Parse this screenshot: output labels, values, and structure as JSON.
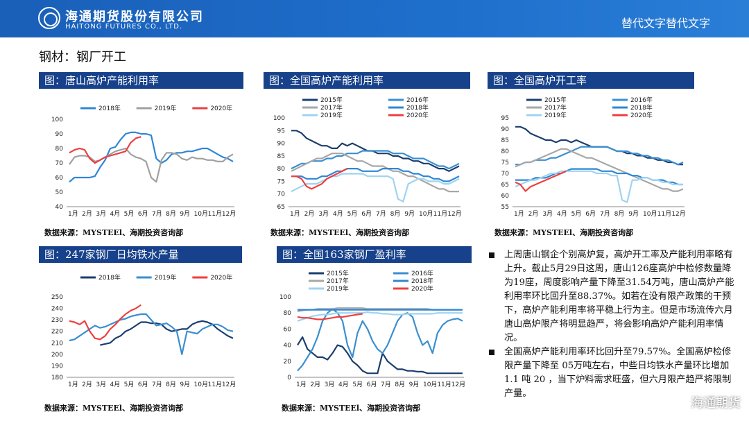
{
  "header": {
    "company_cn": "海通期货股份有限公司",
    "company_en": "HAITONG FUTURES CO., LTD.",
    "alt_text": "替代文字替代文字"
  },
  "page_title": "钢材：钢厂开工",
  "source_text": "数据来源：MYSTEEl、海期投资咨询部",
  "notes": [
    "上周唐山钢企个别高炉复，高炉开工率及产能利用率略有上升。截止5月29日这周，唐山126座高炉中检修数量降为19座，周度影响产量下降至31.54万吨，唐山高炉产能利用率环比回升至88.37%。如若在没有限产政策的干预下，高炉产能利用率将平稳上行为主。但是市场流传六月唐山高炉限产将明显趋严，将会影响高炉产能利用率情况。",
    "全国高炉产能利用率环比回升至79.57%。全国高炉检修限产量下降至 05万吨左右，中些日均铁水产量环比增加1.1 吨 20 ，当下炉料需求旺盛，但六月限产趋严将限制产量。"
  ],
  "watermark": "海通期货",
  "colors": {
    "2015": "#1b3e6e",
    "2016": "#3a8fd0",
    "2017": "#a7a7a7",
    "2018": "#2f86d6",
    "2019": "#9fd3f0",
    "2020": "#ee3f3f",
    "2018_tangshan": "#2f86d6",
    "2019_tangshan": "#a0a0a0",
    "2018_iron": "#1b3e6e",
    "2019_iron": "#3a8fd0"
  },
  "chart_data": [
    {
      "type": "line",
      "title": "图：唐山高炉产能利用率",
      "x_ticks": [
        "1月",
        "2月",
        "3月",
        "4月",
        "5月",
        "6月",
        "7月",
        "8月",
        "9月",
        "10月",
        "11月",
        "12月"
      ],
      "ylim": [
        40,
        100
      ],
      "y_ticks": [
        40,
        50,
        60,
        70,
        80,
        90,
        100
      ],
      "legend": [
        "2018年",
        "2019年",
        "2020年"
      ],
      "series": [
        {
          "name": "2018年",
          "color_key": "2018_tangshan",
          "values": [
            57,
            60,
            60,
            60,
            60,
            61,
            67,
            72,
            80,
            81,
            86,
            90,
            91,
            91,
            90,
            90,
            89,
            73,
            70,
            72,
            76,
            77,
            77,
            78,
            78,
            79,
            80,
            80,
            78,
            76,
            74,
            73,
            71
          ]
        },
        {
          "name": "2019年",
          "color_key": "2019_tangshan",
          "values": [
            69,
            74,
            75,
            75,
            74,
            71,
            72,
            74,
            76,
            78,
            79,
            80,
            76,
            74,
            73,
            71,
            60,
            57,
            72,
            77,
            77,
            76,
            73,
            72,
            74,
            73,
            73,
            72,
            72,
            71,
            71,
            74,
            76
          ]
        },
        {
          "name": "2020年",
          "color_key": "2020",
          "values": [
            77,
            79,
            80,
            79,
            73,
            70,
            72,
            74,
            75,
            76,
            77,
            78,
            84,
            87,
            88
          ]
        }
      ]
    },
    {
      "type": "line",
      "title": "图：全国高炉产能利用率",
      "x_ticks": [
        "1月",
        "2月",
        "3月",
        "4月",
        "5月",
        "6月",
        "7月",
        "8月",
        "9月",
        "10月",
        "11月",
        "12月"
      ],
      "ylim": [
        65,
        100
      ],
      "y_ticks": [
        65,
        70,
        75,
        80,
        85,
        90,
        95,
        100
      ],
      "legend": [
        "2015年",
        "2016年",
        "2017年",
        "2018年",
        "2019年",
        "2020年"
      ],
      "series": [
        {
          "name": "2015年",
          "color_key": "2015",
          "values": [
            95,
            95,
            94,
            92,
            91,
            90,
            89,
            89,
            88,
            88,
            90,
            89,
            90,
            89,
            88,
            87,
            87,
            86,
            86,
            86,
            85,
            85,
            84,
            84,
            83,
            83,
            82,
            82,
            81,
            80,
            80,
            79,
            80,
            81
          ]
        },
        {
          "name": "2016年",
          "color_key": "2016",
          "values": [
            80,
            81,
            82,
            82,
            83,
            83,
            83,
            84,
            84,
            85,
            85,
            86,
            86,
            86,
            87,
            87,
            87,
            87,
            87,
            87,
            86,
            86,
            86,
            85,
            84,
            84,
            84,
            83,
            82,
            81,
            81,
            80,
            81,
            82
          ]
        },
        {
          "name": "2017年",
          "color_key": "2017",
          "values": [
            79,
            80,
            81,
            82,
            83,
            84,
            84,
            85,
            86,
            86,
            86,
            85,
            84,
            83,
            83,
            82,
            81,
            81,
            81,
            80,
            79,
            79,
            78,
            77,
            77,
            76,
            75,
            74,
            73,
            72,
            72,
            71,
            71,
            71
          ]
        },
        {
          "name": "2018年",
          "color_key": "2018",
          "values": [
            77,
            77,
            77,
            76,
            76,
            76,
            77,
            77,
            78,
            79,
            79,
            80,
            80,
            80,
            79,
            79,
            79,
            79,
            80,
            80,
            80,
            80,
            79,
            79,
            78,
            78,
            77,
            77,
            76,
            76,
            75,
            75,
            76,
            77
          ]
        },
        {
          "name": "2019年",
          "color_key": "2019",
          "values": [
            71,
            72,
            73,
            74,
            74,
            74,
            75,
            76,
            77,
            77,
            78,
            78,
            78,
            78,
            78,
            77,
            77,
            77,
            77,
            77,
            76,
            68,
            67,
            74,
            75,
            76,
            76,
            75,
            75,
            75,
            74,
            74,
            75,
            76
          ]
        },
        {
          "name": "2020年",
          "color_key": "2020",
          "values": [
            77,
            77,
            76,
            73,
            72,
            73,
            74,
            76,
            77,
            78,
            79,
            80
          ]
        }
      ]
    },
    {
      "type": "line",
      "title": "图：全国高炉开工率",
      "x_ticks": [
        "1月",
        "2月",
        "3月",
        "4月",
        "5月",
        "6月",
        "7月",
        "8月",
        "9月",
        "10月",
        "11月",
        "12月"
      ],
      "ylim": [
        55,
        95
      ],
      "y_ticks": [
        55,
        60,
        65,
        70,
        75,
        80,
        85,
        90,
        95
      ],
      "legend": [
        "2015年",
        "2016年",
        "2017年",
        "2018年",
        "2019年",
        "2020年"
      ],
      "series": [
        {
          "name": "2015年",
          "color_key": "2015",
          "values": [
            91,
            91,
            90,
            88,
            87,
            86,
            85,
            85,
            84,
            85,
            85,
            84,
            85,
            84,
            83,
            82,
            82,
            82,
            82,
            81,
            80,
            80,
            79,
            79,
            78,
            78,
            77,
            77,
            76,
            76,
            75,
            75,
            74,
            74
          ]
        },
        {
          "name": "2016年",
          "color_key": "2016",
          "values": [
            74,
            74,
            75,
            75,
            76,
            76,
            76,
            77,
            77,
            78,
            79,
            80,
            81,
            82,
            82,
            82,
            82,
            82,
            82,
            81,
            80,
            80,
            80,
            79,
            79,
            78,
            78,
            77,
            77,
            76,
            76,
            75,
            74,
            75
          ]
        },
        {
          "name": "2017年",
          "color_key": "2017",
          "values": [
            73,
            74,
            75,
            75,
            76,
            77,
            78,
            79,
            80,
            81,
            81,
            80,
            79,
            78,
            77,
            77,
            76,
            75,
            74,
            73,
            72,
            71,
            70,
            69,
            68,
            67,
            66,
            65,
            64,
            63,
            63,
            62,
            62,
            63
          ]
        },
        {
          "name": "2018年",
          "color_key": "2018",
          "values": [
            67,
            67,
            67,
            67,
            68,
            68,
            68,
            69,
            70,
            70,
            71,
            72,
            72,
            72,
            72,
            72,
            72,
            71,
            71,
            71,
            70,
            70,
            70,
            69,
            69,
            68,
            68,
            67,
            67,
            67,
            66,
            66,
            65,
            65
          ]
        },
        {
          "name": "2019年",
          "color_key": "2019",
          "values": [
            64,
            65,
            66,
            67,
            67,
            68,
            69,
            70,
            70,
            71,
            71,
            71,
            71,
            71,
            71,
            71,
            70,
            70,
            70,
            69,
            69,
            58,
            57,
            67,
            67,
            68,
            68,
            67,
            67,
            66,
            66,
            65,
            65,
            65
          ]
        },
        {
          "name": "2020年",
          "color_key": "2020",
          "values": [
            66,
            65,
            62,
            64,
            65,
            66,
            67,
            68,
            69,
            70,
            71
          ]
        }
      ]
    },
    {
      "type": "line",
      "title": "图：247家钢厂日均铁水产量",
      "x_ticks": [
        "1月",
        "2月",
        "3月",
        "4月",
        "5月",
        "6月",
        "7月",
        "8月",
        "9月",
        "10月",
        "11月",
        "12月"
      ],
      "ylim": [
        180,
        250
      ],
      "y_ticks": [
        180,
        190,
        200,
        210,
        220,
        230,
        240,
        250
      ],
      "legend": [
        "2018年",
        "2019年",
        "2020年"
      ],
      "series": [
        {
          "name": "2018年",
          "color_key": "2018_iron",
          "values": [
            null,
            null,
            null,
            null,
            null,
            null,
            208,
            209,
            210,
            214,
            216,
            220,
            222,
            225,
            228,
            228,
            227,
            227,
            226,
            222,
            220,
            221,
            222,
            222,
            226,
            228,
            229,
            228,
            226,
            222,
            219,
            216,
            214
          ]
        },
        {
          "name": "2019年",
          "color_key": "2019_iron",
          "values": [
            212,
            213,
            216,
            219,
            222,
            225,
            223,
            224,
            226,
            228,
            230,
            231,
            233,
            234,
            235,
            235,
            230,
            225,
            226,
            227,
            224,
            220,
            200,
            220,
            219,
            218,
            222,
            224,
            226,
            226,
            224,
            221,
            220
          ]
        },
        {
          "name": "2020年",
          "color_key": "2020",
          "values": [
            229,
            228,
            226,
            229,
            220,
            214,
            213,
            216,
            222,
            226,
            231,
            235,
            238,
            240,
            243
          ]
        }
      ]
    },
    {
      "type": "line",
      "title": "图：全国163家钢厂盈利率",
      "x_ticks": [
        "1月",
        "2月",
        "3月",
        "4月",
        "5月",
        "6月",
        "7月",
        "8月",
        "9月",
        "10月",
        "11月",
        "12月"
      ],
      "ylim": [
        0,
        100
      ],
      "y_ticks": [
        0,
        20,
        40,
        60,
        80,
        100
      ],
      "legend": [
        "2015年",
        "2016年",
        "2017年",
        "2018年",
        "2019年",
        "2020年"
      ],
      "series": [
        {
          "name": "2015年",
          "color_key": "2015",
          "values": [
            40,
            50,
            35,
            30,
            25,
            25,
            22,
            30,
            40,
            38,
            30,
            20,
            15,
            8,
            5,
            5,
            5,
            30,
            20,
            15,
            10,
            10,
            8,
            8,
            7,
            7,
            5,
            5,
            5,
            5,
            5,
            5,
            5,
            5
          ]
        },
        {
          "name": "2016年",
          "color_key": "2016",
          "values": [
            8,
            15,
            25,
            35,
            50,
            70,
            80,
            85,
            80,
            70,
            40,
            25,
            55,
            70,
            60,
            45,
            35,
            30,
            40,
            55,
            70,
            78,
            80,
            75,
            55,
            40,
            45,
            30,
            55,
            65,
            70,
            72,
            73,
            70
          ]
        },
        {
          "name": "2017年",
          "color_key": "2017",
          "values": [
            82,
            83,
            84,
            84,
            85,
            85,
            85,
            85,
            86,
            86,
            86,
            86,
            86,
            86,
            85,
            85,
            85,
            85,
            85,
            85,
            85,
            85,
            85,
            85,
            85,
            85,
            85,
            84,
            84,
            84,
            84,
            84,
            84,
            84
          ]
        },
        {
          "name": "2018年",
          "color_key": "2018",
          "values": [
            84,
            84,
            84,
            84,
            84,
            84,
            84,
            84,
            84,
            84,
            84,
            84,
            84,
            84,
            84,
            84,
            84,
            84,
            84,
            84,
            84,
            84,
            84,
            84,
            84,
            84,
            84,
            84,
            84,
            84,
            84,
            84,
            84,
            84
          ]
        },
        {
          "name": "2019年",
          "color_key": "2019",
          "values": [
            70,
            72,
            74,
            76,
            77,
            78,
            78,
            79,
            80,
            80,
            80,
            80,
            80,
            80,
            81,
            80,
            80,
            79,
            79,
            78,
            78,
            78,
            79,
            79,
            79,
            79,
            79,
            79,
            80,
            80,
            80,
            80,
            80,
            80
          ]
        },
        {
          "name": "2020年",
          "color_key": "2020",
          "values": [
            75,
            74,
            74,
            73,
            72,
            72,
            73,
            74,
            75,
            75,
            76,
            77,
            78,
            79
          ]
        }
      ]
    }
  ]
}
